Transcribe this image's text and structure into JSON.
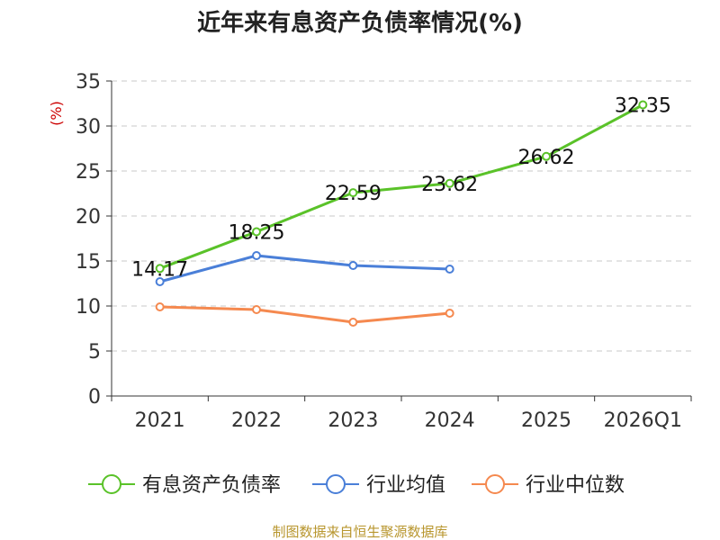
{
  "chart_data": {
    "type": "line",
    "title": "近年来有息资产负债率情况(%)",
    "unit_label": "(%)",
    "categories": [
      "2021",
      "2022",
      "2023",
      "2024",
      "2025",
      "2026Q1"
    ],
    "ylim": [
      0,
      35
    ],
    "yticks": [
      0,
      5,
      10,
      15,
      20,
      25,
      30,
      35
    ],
    "grid": true,
    "legend_position": "bottom",
    "series": [
      {
        "name": "有息资产负债率",
        "color": "#5ac229",
        "values": [
          14.17,
          18.25,
          22.59,
          23.62,
          26.62,
          32.35
        ],
        "labels": [
          "14.17",
          "18.25",
          "22.59",
          "23.62",
          "26.62",
          "32.35"
        ]
      },
      {
        "name": "行业均值",
        "color": "#4a7fd8",
        "values": [
          12.7,
          15.6,
          14.5,
          14.1,
          null,
          null
        ]
      },
      {
        "name": "行业中位数",
        "color": "#f5894f",
        "values": [
          9.9,
          9.6,
          8.2,
          9.2,
          null,
          null
        ]
      }
    ]
  },
  "source": "制图数据来自恒生聚源数据库"
}
